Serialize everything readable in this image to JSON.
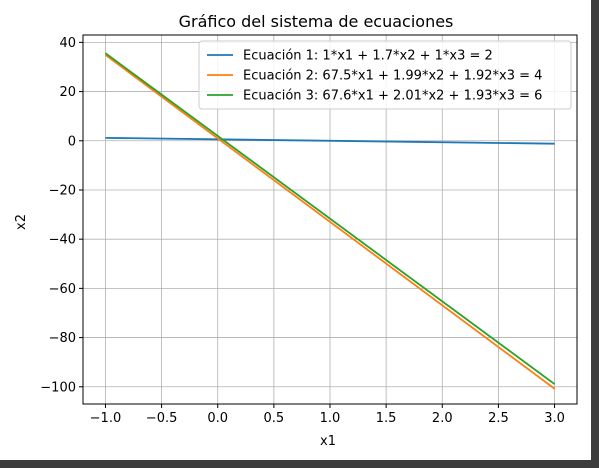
{
  "chart_data": {
    "type": "line",
    "title": "Gráfico del sistema de ecuaciones",
    "xlabel": "x1",
    "ylabel": "x2",
    "xlim": [
      -1.2,
      3.2
    ],
    "ylim": [
      -107,
      43
    ],
    "grid": true,
    "legend_position": "top-right",
    "x_ticks": [
      -1.0,
      -0.5,
      0.0,
      0.5,
      1.0,
      1.5,
      2.0,
      2.5,
      3.0
    ],
    "x_tick_labels": [
      "−1.0",
      "−0.5",
      "0.0",
      "0.5",
      "1.0",
      "1.5",
      "2.0",
      "2.5",
      "3.0"
    ],
    "y_ticks": [
      40,
      20,
      0,
      -20,
      -40,
      -60,
      -80,
      -100
    ],
    "y_tick_labels": [
      "40",
      "20",
      "0",
      "−20",
      "−40",
      "−60",
      "−80",
      "−100"
    ],
    "series": [
      {
        "name": "Ecuación 1: 1*x1 + 1.7*x2 + 1*x3 = 2",
        "color": "#1f77b4",
        "x": [
          -1.0,
          3.0
        ],
        "y": [
          1.18,
          -1.18
        ]
      },
      {
        "name": "Ecuación 2: 67.5*x1 + 1.99*x2 + 1.92*x3 = 4",
        "color": "#ff7f0e",
        "x": [
          -1.0,
          3.0
        ],
        "y": [
          34.9,
          -100.8
        ]
      },
      {
        "name": "Ecuación 3: 67.6*x1 + 2.01*x2 + 1.93*x3 = 6",
        "color": "#2ca02c",
        "x": [
          -1.0,
          3.0
        ],
        "y": [
          35.6,
          -98.9
        ]
      }
    ]
  }
}
